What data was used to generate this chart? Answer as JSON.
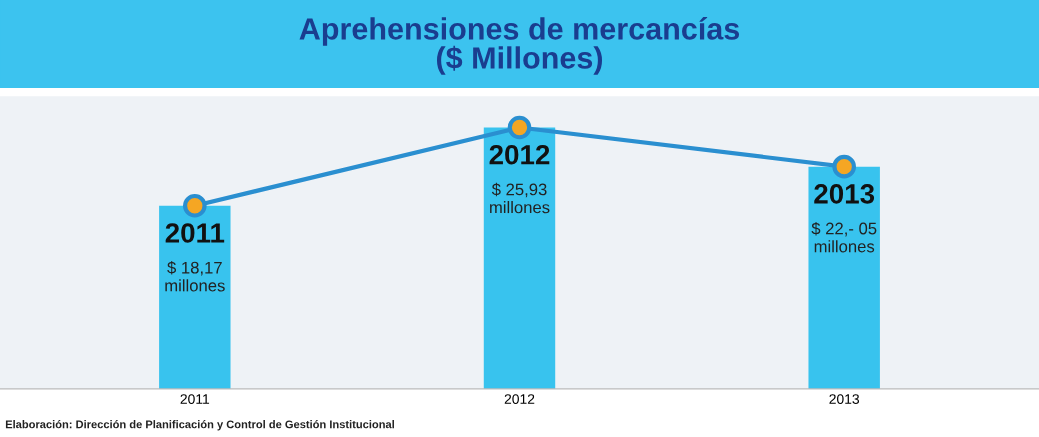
{
  "chart_data": {
    "type": "bar",
    "title": "Aprehensiones de mercancías\n($ Millones)",
    "categories": [
      "2011",
      "2012",
      "2013"
    ],
    "series": [
      {
        "color": "#38c3ee",
        "values": [
          18.17,
          25.93,
          22.05
        ],
        "value_labels": [
          "$ 18,17\nmillones",
          "$ 25,93\nmillones",
          "$ 22,- 05\nmillones"
        ]
      },
      {
        "type": "line",
        "color": "#2a8fd0",
        "marker": "circle",
        "values": [
          18.17,
          25.93,
          22.05
        ]
      }
    ],
    "annotations": [
      {
        "text": "2011",
        "x": "2011",
        "y": 18.17
      },
      {
        "text": "2012",
        "x": "2012",
        "y": 25.93
      },
      {
        "text": "2013",
        "x": "2013",
        "y": 22.05
      },
      "Elaboración: Dirección de Planificación y Control de Gestión Institucional"
    ],
    "grid": false,
    "legend": false,
    "tick_labels": "x"
  }
}
